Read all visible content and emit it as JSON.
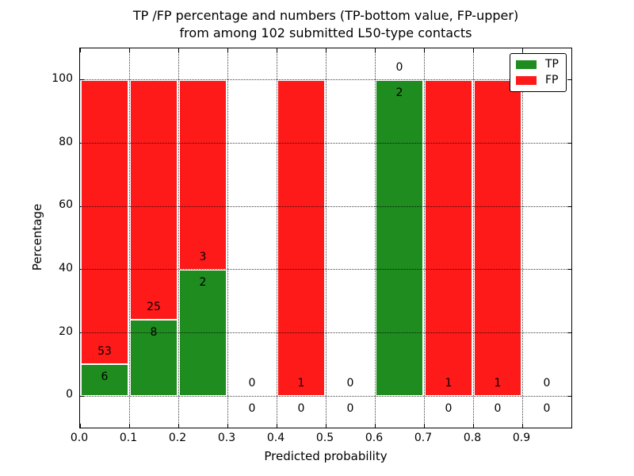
{
  "title": {
    "line1": "TP /FP percentage and numbers (TP-bottom value, FP-upper)",
    "line2": "from among 102 submitted L50-type contacts"
  },
  "chart_data": {
    "type": "bar",
    "stacked": true,
    "title": "TP /FP percentage and numbers (TP-bottom value, FP-upper) from among 102 submitted L50-type contacts",
    "xlabel": "Predicted probability",
    "ylabel": "Percentage",
    "xlim": [
      0.0,
      1.0
    ],
    "ylim": [
      -10,
      110
    ],
    "grid": true,
    "xticks": [
      "0.0",
      "0.1",
      "0.2",
      "0.3",
      "0.4",
      "0.5",
      "0.6",
      "0.7",
      "0.8",
      "0.9"
    ],
    "yticks": [
      0,
      20,
      40,
      60,
      80,
      100
    ],
    "colors": {
      "tp": "#1e8c1e",
      "fp": "#ff1a1a",
      "bar_edge": "#ffffff",
      "axis": "#000000"
    },
    "legend": {
      "position": "upper-right",
      "entries": [
        {
          "label": "TP",
          "color": "#1e8c1e"
        },
        {
          "label": "FP",
          "color": "#ff1a1a"
        }
      ]
    },
    "total_contacts": 102,
    "bins": [
      {
        "x0": 0.0,
        "x1": 0.1,
        "tp": 6,
        "fp": 53,
        "tp_pct": 10.17,
        "fp_pct": 89.83
      },
      {
        "x0": 0.1,
        "x1": 0.2,
        "tp": 8,
        "fp": 25,
        "tp_pct": 24.24,
        "fp_pct": 75.76
      },
      {
        "x0": 0.2,
        "x1": 0.3,
        "tp": 2,
        "fp": 3,
        "tp_pct": 40.0,
        "fp_pct": 60.0
      },
      {
        "x0": 0.3,
        "x1": 0.4,
        "tp": 0,
        "fp": 0,
        "tp_pct": 0,
        "fp_pct": 0
      },
      {
        "x0": 0.4,
        "x1": 0.5,
        "tp": 0,
        "fp": 1,
        "tp_pct": 0,
        "fp_pct": 100
      },
      {
        "x0": 0.5,
        "x1": 0.6,
        "tp": 0,
        "fp": 0,
        "tp_pct": 0,
        "fp_pct": 0
      },
      {
        "x0": 0.6,
        "x1": 0.7,
        "tp": 2,
        "fp": 0,
        "tp_pct": 100,
        "fp_pct": 0
      },
      {
        "x0": 0.7,
        "x1": 0.8,
        "tp": 0,
        "fp": 1,
        "tp_pct": 0,
        "fp_pct": 100
      },
      {
        "x0": 0.8,
        "x1": 0.9,
        "tp": 0,
        "fp": 1,
        "tp_pct": 0,
        "fp_pct": 100
      },
      {
        "x0": 0.9,
        "x1": 1.0,
        "tp": 0,
        "fp": 0,
        "tp_pct": 0,
        "fp_pct": 0
      }
    ]
  }
}
